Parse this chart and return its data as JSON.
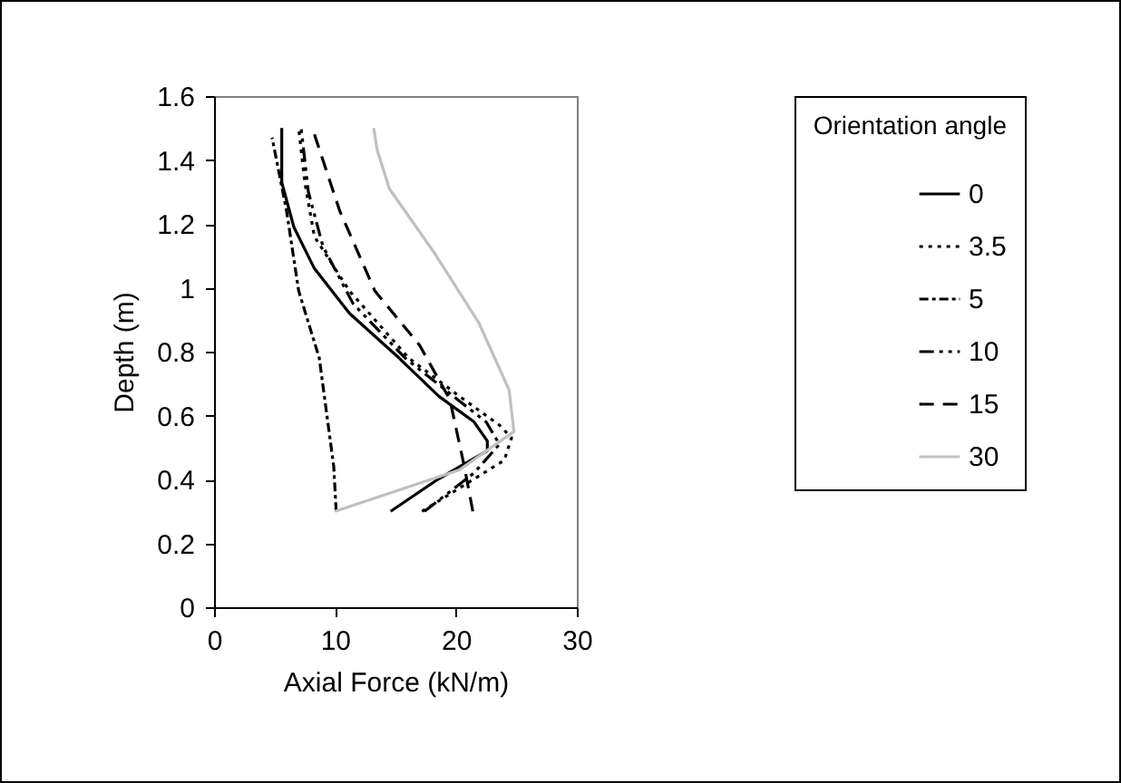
{
  "chart_data": {
    "type": "line",
    "xlabel": "Axial Force (kN/m)",
    "ylabel": "Depth (m)",
    "legend_title": "Orientation angle",
    "xlim": [
      0,
      30
    ],
    "xticks": [
      0,
      10,
      20,
      30
    ],
    "ylim": [
      0,
      1.6
    ],
    "yticks": [
      0,
      0.2,
      0.4,
      0.6,
      0.8,
      1,
      1.2,
      1.4,
      1.6
    ],
    "grid": false,
    "legend": "top right",
    "marker": "none",
    "series": [
      {
        "name": "0",
        "color": "#000000",
        "line_style": "solid",
        "x": [
          14.6,
          18.5,
          22.6,
          22.6,
          21.5,
          18.6,
          15.3,
          11.2,
          8.3,
          6.6,
          5.6,
          5.6
        ],
        "values": [
          0.3,
          0.4,
          0.49,
          0.52,
          0.58,
          0.66,
          0.78,
          0.92,
          1.06,
          1.19,
          1.33,
          1.5
        ]
      },
      {
        "name": "3.5",
        "color": "#000000",
        "line_style": "dotted",
        "x": [
          17.2,
          24.0,
          24.6,
          23.6,
          20.3,
          16.1,
          11.2,
          8.3,
          7.5,
          7.0
        ],
        "values": [
          0.3,
          0.46,
          0.53,
          0.57,
          0.66,
          0.78,
          0.99,
          1.16,
          1.33,
          1.5
        ]
      },
      {
        "name": "5",
        "color": "#000000",
        "line_style": "dashdot",
        "x": [
          10.1,
          9.9,
          8.7,
          7.0,
          6.0,
          4.8
        ],
        "values": [
          0.3,
          0.44,
          0.78,
          0.99,
          1.24,
          1.47
        ]
      },
      {
        "name": "10",
        "color": "#000000",
        "line_style": "dashdotdot",
        "x": [
          17.4,
          21.5,
          23.6,
          22.5,
          19.8,
          15.8,
          11.5,
          9.0,
          7.8,
          7.2
        ],
        "values": [
          0.3,
          0.42,
          0.51,
          0.58,
          0.66,
          0.78,
          0.95,
          1.13,
          1.3,
          1.5
        ]
      },
      {
        "name": "15",
        "color": "#000000",
        "line_style": "dashed",
        "x": [
          21.4,
          20.7,
          19.5,
          17.0,
          13.3,
          10.4,
          8.3
        ],
        "values": [
          0.3,
          0.44,
          0.65,
          0.82,
          0.99,
          1.24,
          1.48
        ]
      },
      {
        "name": "30",
        "color": "#c0c0c0",
        "line_style": "solid",
        "x": [
          10.0,
          20.3,
          24.8,
          24.4,
          21.9,
          18.2,
          14.5,
          13.5,
          13.2
        ],
        "values": [
          0.3,
          0.43,
          0.55,
          0.68,
          0.89,
          1.11,
          1.31,
          1.43,
          1.5
        ]
      }
    ]
  }
}
